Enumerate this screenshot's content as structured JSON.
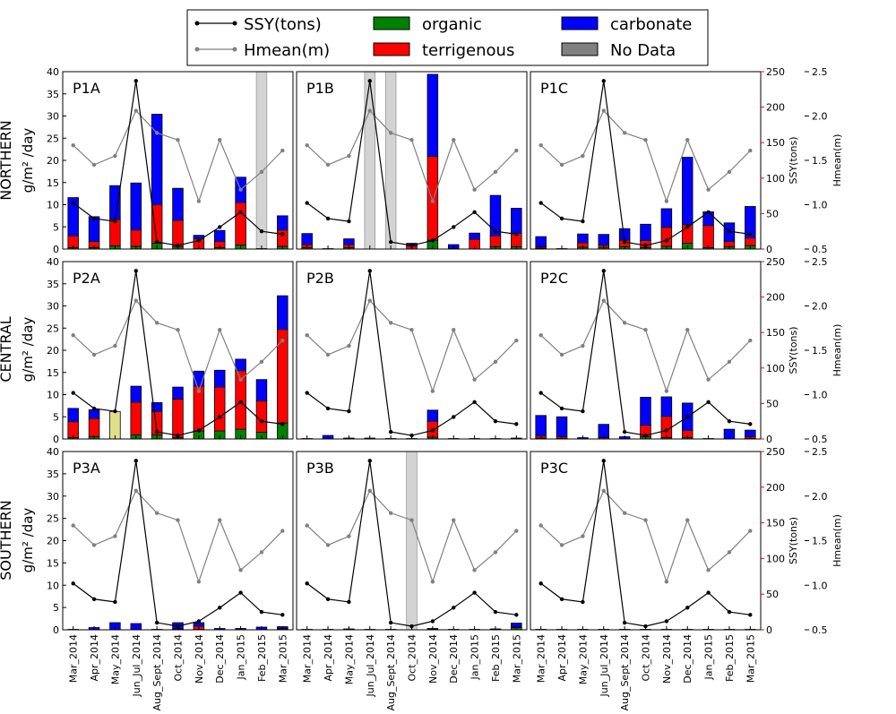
{
  "legend": {
    "ssy": "SSY(tons)",
    "hmean": "Hmean(m)",
    "organic": "organic",
    "terrigenous": "terrigenous",
    "carbonate": "carbonate",
    "nodata": "No Data"
  },
  "row_labels": [
    {
      "region": "NORTHERN",
      "unit": "g/m² /day"
    },
    {
      "region": "CENTRAL",
      "unit": "g/m² /day"
    },
    {
      "region": "SOUTHERN",
      "unit": "g/m² /day"
    }
  ],
  "right_axes": {
    "ssy_label": "SSY(tons)",
    "hmean_label": "Hmean(m)"
  },
  "colors": {
    "organic": "#008000",
    "terrigenous": "#ff0000",
    "carbonate": "#0000ff",
    "nodata": "#d3d3d3",
    "ssy_line": "#000000",
    "hmean_line": "#808080",
    "partial_bar": "#e0e08a"
  },
  "chart_data": {
    "type": "bar",
    "stacked": true,
    "categories": [
      "Mar_2014",
      "Apr_2014",
      "May_2014",
      "Jun_Jul_2014",
      "Aug_Sept_2014",
      "Oct_2014",
      "Nov_2014",
      "Dec_2014",
      "Jan_2015",
      "Feb_2015",
      "Mar_2015"
    ],
    "left_axis": {
      "ylim": [
        0,
        40
      ],
      "ticks": [
        0,
        5,
        10,
        15,
        20,
        25,
        30,
        35,
        40
      ]
    },
    "ssy_axis": {
      "label": "SSY(tons)",
      "ylim": [
        0,
        250
      ],
      "ticks": [
        0,
        50,
        100,
        150,
        200,
        250
      ]
    },
    "hmean_axis": {
      "label": "Hmean(m)",
      "ylim": [
        0.5,
        2.5
      ],
      "ticks": [
        "0.5",
        "1.0",
        "1.5",
        "2.0",
        "2.5"
      ]
    },
    "ssy": [
      65,
      43,
      39,
      237,
      10,
      5,
      12,
      31,
      52,
      25,
      21
    ],
    "hmean": [
      1.67,
      1.45,
      1.55,
      2.06,
      1.81,
      1.73,
      1.04,
      1.73,
      1.17,
      1.37,
      1.61
    ],
    "panels": [
      {
        "id": "P1A",
        "organic": [
          0.3,
          0.3,
          0.7,
          0.6,
          1.3,
          0.5,
          0.1,
          0.3,
          0.9,
          0.1,
          0.6
        ],
        "terrigenous": [
          2.7,
          1.4,
          6,
          3.7,
          8.7,
          6,
          2.2,
          1.4,
          9.6,
          0,
          3.7
        ],
        "carbonate": [
          8.6,
          5.6,
          7.6,
          10.6,
          20.4,
          7.2,
          0.8,
          2.5,
          5.7,
          0,
          3.2
        ],
        "nodata_index": 9
      },
      {
        "id": "P1B",
        "organic": [
          0.3,
          0,
          0.3,
          0,
          0,
          0,
          2,
          0,
          0,
          0.5,
          0.5
        ],
        "terrigenous": [
          0.7,
          0,
          0.7,
          0,
          0,
          0.7,
          18.9,
          0.1,
          2.2,
          2.5,
          3
        ],
        "carbonate": [
          2.5,
          0.1,
          1.3,
          0,
          0,
          0.6,
          18.5,
          0.9,
          1.4,
          9.1,
          5.7
        ],
        "nodata_index": [
          3,
          4
        ]
      },
      {
        "id": "P1C",
        "organic": [
          0.2,
          0,
          0.4,
          0.4,
          0.5,
          0.3,
          0.6,
          1.3,
          0.3,
          0.5,
          0.8
        ],
        "terrigenous": [
          0.3,
          0,
          1,
          0.5,
          1.5,
          1.6,
          4.3,
          4.2,
          5,
          1.2,
          1.7
        ],
        "carbonate": [
          2.3,
          0.1,
          2,
          2.4,
          2.6,
          3.7,
          4.2,
          15.2,
          3.1,
          4.2,
          7.1
        ]
      },
      {
        "id": "P2A",
        "organic": [
          0.3,
          0.5,
          0.2,
          0.9,
          0.9,
          0.3,
          1.8,
          1.8,
          2.2,
          1.5,
          3.6
        ],
        "terrigenous": [
          3.6,
          4.1,
          0,
          7.4,
          5.3,
          8.7,
          10.1,
          9.9,
          13.2,
          7.1,
          21.1
        ],
        "carbonate": [
          3,
          2,
          0,
          3.6,
          2,
          2.7,
          3.4,
          3.8,
          2.6,
          4.8,
          7.6
        ],
        "partial": {
          "index": 2,
          "value": 6.2
        }
      },
      {
        "id": "P2B",
        "organic": [
          0,
          0,
          0,
          0,
          0,
          0,
          0.4,
          0,
          0,
          0,
          0
        ],
        "terrigenous": [
          0,
          0,
          0,
          0,
          0,
          0,
          3.6,
          0,
          0,
          0,
          0
        ],
        "carbonate": [
          0.1,
          0.8,
          0.2,
          0.2,
          0.1,
          0.1,
          2.5,
          0.1,
          0.1,
          0.1,
          0.2
        ]
      },
      {
        "id": "P2C",
        "organic": [
          0.2,
          0.1,
          0,
          0,
          0,
          0.5,
          0.3,
          0.3,
          0,
          0,
          0.1
        ],
        "terrigenous": [
          0.5,
          0.4,
          0,
          0.3,
          0,
          2.6,
          4.8,
          1.6,
          0,
          0,
          0.4
        ],
        "carbonate": [
          4.6,
          4.5,
          0.3,
          3,
          0.5,
          6.3,
          4.4,
          6.2,
          0.1,
          2.2,
          1.5
        ]
      },
      {
        "id": "P3A",
        "organic": [
          0,
          0,
          0,
          0,
          0,
          0.1,
          0.1,
          0,
          0,
          0,
          0.1
        ],
        "terrigenous": [
          0,
          0,
          0,
          0,
          0,
          0.1,
          0.7,
          0,
          0,
          0,
          0.2
        ],
        "carbonate": [
          0.1,
          0.5,
          1.6,
          1.4,
          0.1,
          1.4,
          0.8,
          0.3,
          0.3,
          0.6,
          0.4
        ]
      },
      {
        "id": "P3B",
        "organic": [
          0,
          0,
          0,
          0,
          0,
          0,
          0,
          0,
          0,
          0,
          0.5
        ],
        "terrigenous": [
          0,
          0,
          0,
          0,
          0,
          0,
          0.1,
          0,
          0,
          0,
          0.1
        ],
        "carbonate": [
          0.1,
          0.1,
          0.2,
          0.1,
          0.1,
          0,
          0.2,
          0.1,
          0.1,
          0.2,
          0.9
        ],
        "nodata_index": 5
      },
      {
        "id": "P3C",
        "organic": [
          0,
          0,
          0,
          0,
          0,
          0,
          0,
          0,
          0,
          0,
          0
        ],
        "terrigenous": [
          0,
          0,
          0,
          0,
          0,
          0,
          0,
          0,
          0,
          0,
          0
        ],
        "carbonate": [
          0.1,
          0.1,
          0.1,
          0.1,
          0.1,
          0.1,
          0.1,
          0.1,
          0.1,
          0.1,
          0.1
        ]
      }
    ]
  }
}
